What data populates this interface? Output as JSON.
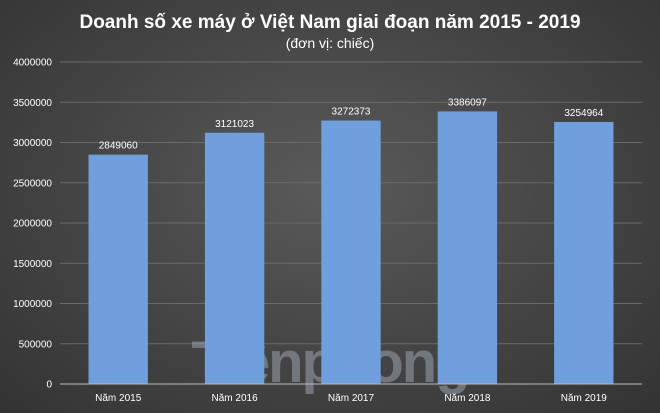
{
  "chart_data": {
    "type": "bar",
    "title": "Doanh số xe máy ở Việt Nam giai đoạn năm 2015 - 2019",
    "subtitle": "(đơn vị: chiếc)",
    "categories": [
      "Năm 2015",
      "Năm 2016",
      "Năm 2017",
      "Năm 2018",
      "Năm 2019"
    ],
    "values": [
      2849060,
      3121023,
      3272373,
      3386097,
      3254964
    ],
    "data_labels": [
      "2849060",
      "3121023",
      "3272373",
      "3386097",
      "3254964"
    ],
    "yticks": [
      "0",
      "500000",
      "1000000",
      "1500000",
      "2000000",
      "2500000",
      "3000000",
      "3500000",
      "4000000"
    ],
    "ylim": [
      0,
      4000000
    ],
    "grid": true,
    "legend": "none",
    "bar_color": "#6f9fdd"
  },
  "watermark": "Tiềnphong"
}
